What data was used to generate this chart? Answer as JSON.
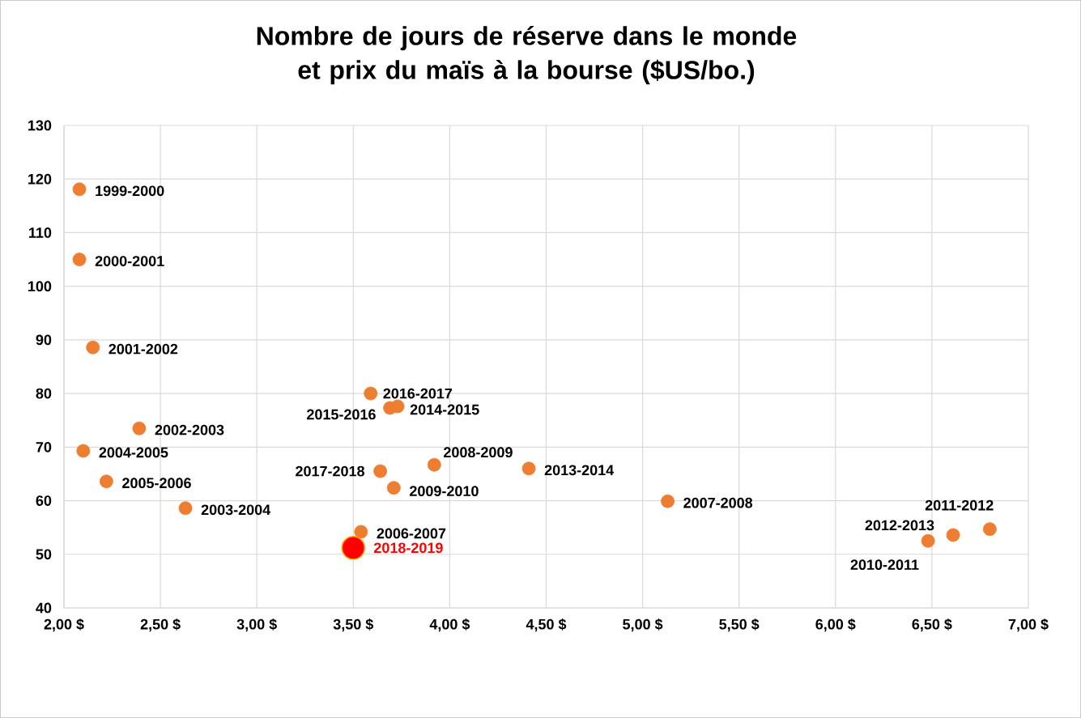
{
  "chart_data": {
    "type": "scatter",
    "title": "Nombre de jours de réserve dans le monde et prix du maïs à la bourse ($US/bo.)",
    "xlim": [
      2,
      7
    ],
    "xticks": [
      {
        "value": 2,
        "label": "2,00 $"
      },
      {
        "value": 2.5,
        "label": "2,50 $"
      },
      {
        "value": 3,
        "label": "3,00 $"
      },
      {
        "value": 3.5,
        "label": "3,50 $"
      },
      {
        "value": 4,
        "label": "4,00 $"
      },
      {
        "value": 4.5,
        "label": "4,50 $"
      },
      {
        "value": 5,
        "label": "5,00 $"
      },
      {
        "value": 5.5,
        "label": "5,50 $"
      },
      {
        "value": 6,
        "label": "6,00 $"
      },
      {
        "value": 6.5,
        "label": "6,50 $"
      },
      {
        "value": 7,
        "label": "7,00 $"
      }
    ],
    "ylim": [
      40,
      130
    ],
    "yticks": [
      40,
      50,
      60,
      70,
      80,
      90,
      100,
      110,
      120,
      130
    ],
    "grid": true,
    "marker": "circle",
    "series": [
      {
        "color": "#ed7d31",
        "x": [
          2.08,
          2.08,
          2.15,
          2.39,
          2.1,
          2.22,
          2.63,
          3.59,
          3.69,
          3.73,
          3.64,
          3.92,
          3.71,
          4.41,
          5.13,
          3.54,
          6.61,
          6.48,
          6.8
        ],
        "values": [
          118.1,
          105.0,
          88.6,
          73.5,
          69.3,
          63.6,
          58.6,
          80.0,
          77.3,
          77.6,
          65.5,
          66.7,
          62.4,
          66.0,
          59.9,
          54.2,
          53.6,
          52.5,
          54.7
        ]
      },
      {
        "name": "2018-2019",
        "color": "#ff0000",
        "x": [
          3.5
        ],
        "values": [
          51.2
        ]
      }
    ],
    "annotations": [
      {
        "text": "1999-2000",
        "x": 2.08,
        "y": 118.1
      },
      {
        "text": "2000-2001",
        "x": 2.08,
        "y": 105.0
      },
      {
        "text": "2001-2002",
        "x": 2.15,
        "y": 88.6
      },
      {
        "text": "2002-2003",
        "x": 2.39,
        "y": 73.5
      },
      {
        "text": "2004-2005",
        "x": 2.1,
        "y": 69.3
      },
      {
        "text": "2005-2006",
        "x": 2.22,
        "y": 63.6
      },
      {
        "text": "2003-2004",
        "x": 2.63,
        "y": 58.6
      },
      {
        "text": "2016-2017",
        "x": 3.59,
        "y": 80.0
      },
      {
        "text": "2015-2016",
        "x": 3.69,
        "y": 77.3
      },
      {
        "text": "2014-2015",
        "x": 3.73,
        "y": 77.6
      },
      {
        "text": "2017-2018",
        "x": 3.64,
        "y": 65.5
      },
      {
        "text": "2008-2009",
        "x": 3.92,
        "y": 66.7
      },
      {
        "text": "2009-2010",
        "x": 3.71,
        "y": 62.4
      },
      {
        "text": "2013-2014",
        "x": 4.41,
        "y": 66.0
      },
      {
        "text": "2007-2008",
        "x": 5.13,
        "y": 59.9
      },
      {
        "text": "2006-2007",
        "x": 3.54,
        "y": 54.2
      },
      {
        "text": "2012-2013",
        "x": 6.61,
        "y": 53.6
      },
      {
        "text": "2010-2011",
        "x": 6.48,
        "y": 52.5
      },
      {
        "text": "2011-2012",
        "x": 6.8,
        "y": 54.7
      }
    ]
  }
}
